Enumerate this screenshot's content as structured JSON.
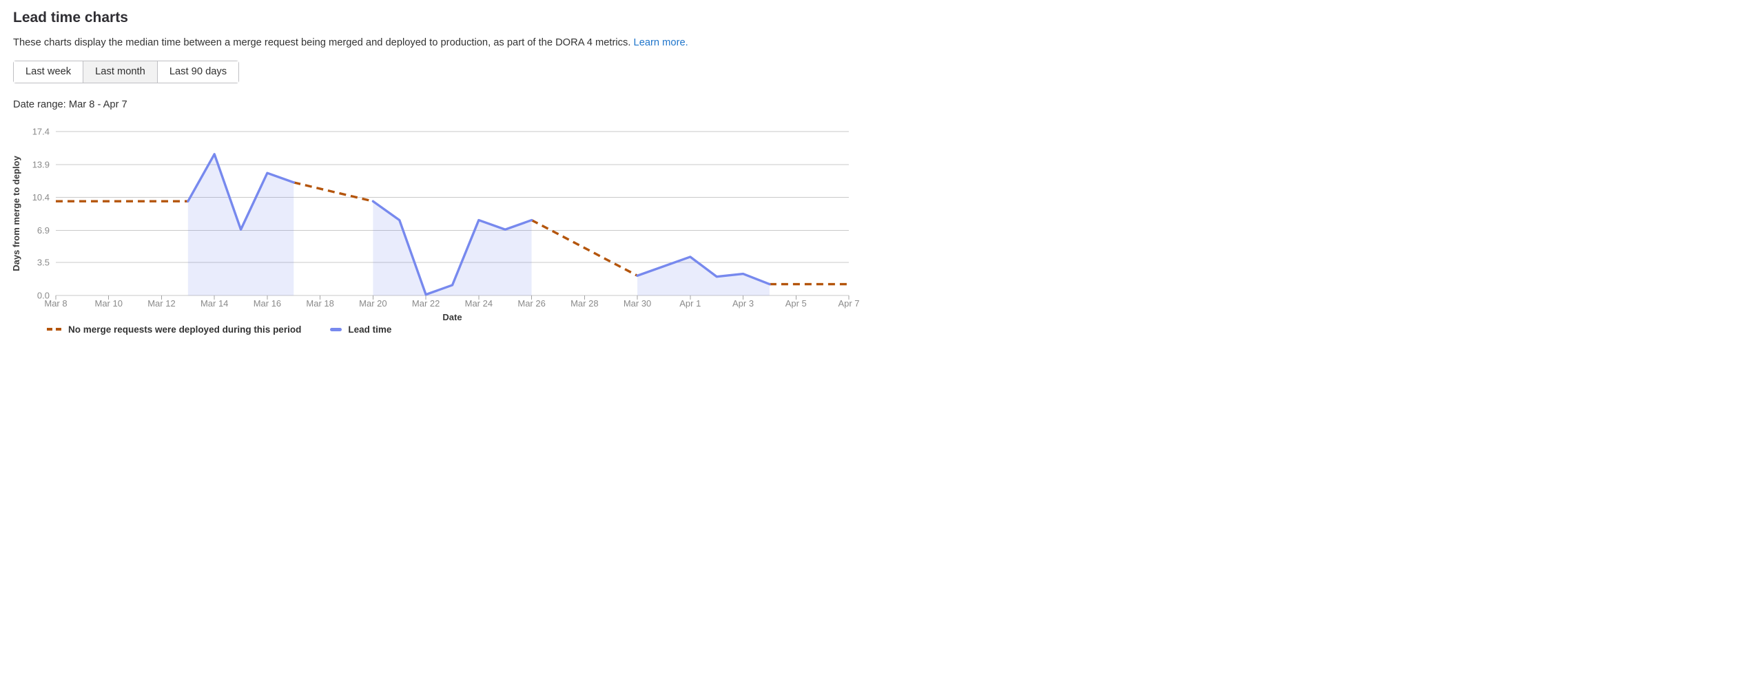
{
  "header": {
    "title": "Lead time charts",
    "description": "These charts display the median time between a merge request being merged and deployed to production, as part of the DORA 4 metrics.",
    "learn_more_label": "Learn more.",
    "link_color": "#1f75cb"
  },
  "range_selector": {
    "options": [
      {
        "label": "Last week",
        "selected": false
      },
      {
        "label": "Last month",
        "selected": true
      },
      {
        "label": "Last 90 days",
        "selected": false
      }
    ]
  },
  "date_range_text": "Date range: Mar 8 - Apr 7",
  "chart_data": {
    "type": "line",
    "title": "",
    "xlabel": "Date",
    "ylabel": "Days from merge to deploy",
    "ylim": [
      0,
      17.4
    ],
    "y_ticks": [
      0.0,
      3.5,
      6.9,
      10.4,
      13.9,
      17.4
    ],
    "y_tick_labels": [
      "0.0",
      "3.5",
      "6.9",
      "10.4",
      "13.9",
      "17.4"
    ],
    "x_range_days": [
      0,
      30
    ],
    "x_ticks": [
      {
        "day": 0,
        "label": "Mar 8"
      },
      {
        "day": 2,
        "label": "Mar 10"
      },
      {
        "day": 4,
        "label": "Mar 12"
      },
      {
        "day": 6,
        "label": "Mar 14"
      },
      {
        "day": 8,
        "label": "Mar 16"
      },
      {
        "day": 10,
        "label": "Mar 18"
      },
      {
        "day": 12,
        "label": "Mar 20"
      },
      {
        "day": 14,
        "label": "Mar 22"
      },
      {
        "day": 16,
        "label": "Mar 24"
      },
      {
        "day": 18,
        "label": "Mar 26"
      },
      {
        "day": 20,
        "label": "Mar 28"
      },
      {
        "day": 22,
        "label": "Mar 30"
      },
      {
        "day": 24,
        "label": "Apr 1"
      },
      {
        "day": 26,
        "label": "Apr 3"
      },
      {
        "day": 28,
        "label": "Apr 5"
      },
      {
        "day": 30,
        "label": "Apr 7"
      }
    ],
    "grid": true,
    "legend_position": "bottom-left",
    "style": {
      "grid_color": "#c9c9c9",
      "tick_mark_color": "#a3a3a3",
      "tick_label_color": "#8a8a8a",
      "axis_title_color": "#3a3a3a"
    },
    "series": [
      {
        "name": "Lead time",
        "type": "area",
        "color": "#7789ee",
        "fill_color": "rgba(119, 137, 238, 0.16)",
        "segments": [
          [
            {
              "day": 5,
              "date": "Mar 13",
              "value": 10
            },
            {
              "day": 6,
              "date": "Mar 14",
              "value": 15
            },
            {
              "day": 7,
              "date": "Mar 15",
              "value": 7
            },
            {
              "day": 8,
              "date": "Mar 16",
              "value": 13
            },
            {
              "day": 9,
              "date": "Mar 17",
              "value": 12
            }
          ],
          [
            {
              "day": 12,
              "date": "Mar 20",
              "value": 10
            },
            {
              "day": 13,
              "date": "Mar 21",
              "value": 8
            },
            {
              "day": 14,
              "date": "Mar 22",
              "value": 0.1
            },
            {
              "day": 15,
              "date": "Mar 23",
              "value": 1.1
            },
            {
              "day": 16,
              "date": "Mar 24",
              "value": 8
            },
            {
              "day": 17,
              "date": "Mar 25",
              "value": 7
            },
            {
              "day": 18,
              "date": "Mar 26",
              "value": 8
            }
          ],
          [
            {
              "day": 22,
              "date": "Mar 30",
              "value": 2.1
            },
            {
              "day": 24,
              "date": "Apr 1",
              "value": 4.1
            },
            {
              "day": 25,
              "date": "Apr 2",
              "value": 2.0
            },
            {
              "day": 26,
              "date": "Apr 3",
              "value": 2.3
            },
            {
              "day": 27,
              "date": "Apr 4",
              "value": 1.2
            }
          ]
        ]
      },
      {
        "name": "No merge requests were deployed during this period",
        "type": "dashed",
        "color": "#b4550c",
        "segments": [
          [
            {
              "day": 0,
              "date": "Mar 8",
              "value": 10
            },
            {
              "day": 5,
              "date": "Mar 13",
              "value": 10
            }
          ],
          [
            {
              "day": 9,
              "date": "Mar 17",
              "value": 12
            },
            {
              "day": 12,
              "date": "Mar 20",
              "value": 10
            }
          ],
          [
            {
              "day": 18,
              "date": "Mar 26",
              "value": 8
            },
            {
              "day": 22,
              "date": "Mar 30",
              "value": 2.1
            }
          ],
          [
            {
              "day": 27,
              "date": "Apr 4",
              "value": 1.2
            },
            {
              "day": 30,
              "date": "Apr 7",
              "value": 1.2
            }
          ]
        ]
      }
    ],
    "legend": [
      {
        "label": "No merge requests were deployed during this period",
        "marker": "dashed-line",
        "color": "#b4550c"
      },
      {
        "label": "Lead time",
        "marker": "solid-line",
        "color": "#7789ee"
      }
    ]
  }
}
